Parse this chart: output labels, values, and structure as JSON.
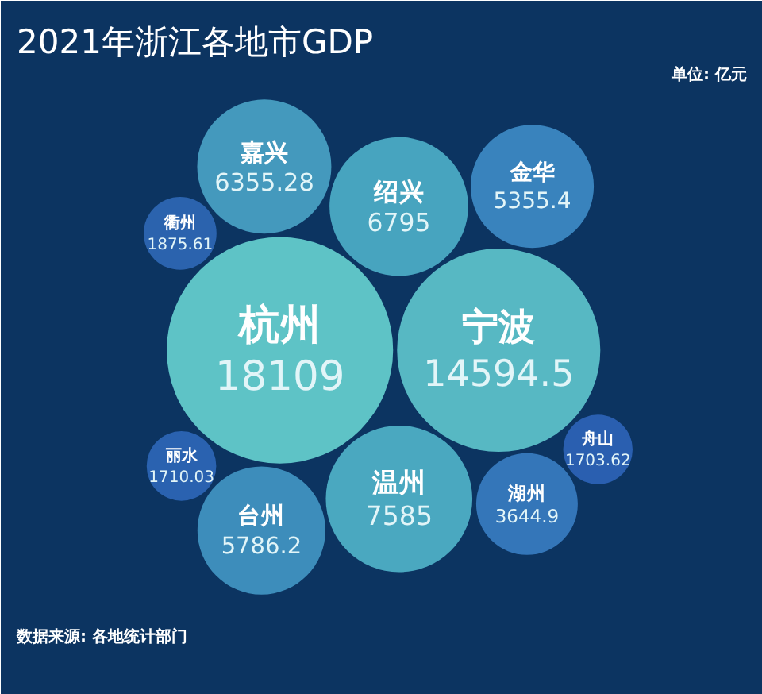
{
  "chart_data": {
    "type": "other",
    "title": "2021年浙江各地市GDP",
    "subtitle": "单位: 亿元",
    "annotations": [
      "数据来源: 各地统计部门"
    ],
    "categories": [
      "杭州",
      "宁波",
      "温州",
      "绍兴",
      "嘉兴",
      "台州",
      "金华",
      "湖州",
      "衢州",
      "丽水",
      "舟山"
    ],
    "values": [
      18109,
      14594.5,
      7585,
      6795,
      6355.28,
      5786.2,
      5355.4,
      3644.9,
      1875.61,
      1710.03,
      1703.62
    ],
    "colors": [
      "#5ec3c6",
      "#57b8c3",
      "#4aa8c0",
      "#47a4bf",
      "#4499bd",
      "#3d8dbb",
      "#3983bd",
      "#3476b9",
      "#2b63ae",
      "#2a62b0",
      "#2a5fb0"
    ],
    "data_labels": true
  }
}
